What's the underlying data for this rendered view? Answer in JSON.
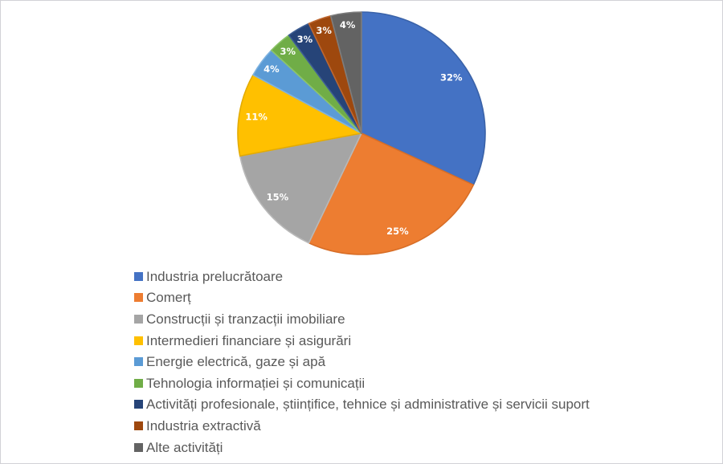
{
  "canvas": {
    "background": "#ffffff",
    "border_color": "#d2d2d6"
  },
  "chart_data": {
    "type": "pie",
    "title": "",
    "direction": "clockwise",
    "start_angle_deg": 0,
    "legend_position": "bottom-left",
    "data_label_color": "#ffffff",
    "legend_text_color": "#595959",
    "slices": [
      {
        "label": "Industria prelucrătoare",
        "value": 32,
        "percent_label": "32%",
        "color": "#4472C4",
        "border": "#3A62A8"
      },
      {
        "label": "Comerț",
        "value": 25,
        "percent_label": "25%",
        "color": "#ED7D31",
        "border": "#D86E27"
      },
      {
        "label": "Construcții și tranzacții imobiliare",
        "value": 15,
        "percent_label": "15%",
        "color": "#A5A5A5",
        "border": "#B9B9B9"
      },
      {
        "label": "Intermedieri financiare și asigurări",
        "value": 11,
        "percent_label": "11%",
        "color": "#FFC000",
        "border": "#E3AB00"
      },
      {
        "label": "Energie electrică, gaze și apă",
        "value": 4,
        "percent_label": "4%",
        "color": "#5B9BD5",
        "border": "#7FB3E0"
      },
      {
        "label": "Tehnologia informației și comunicații",
        "value": 3,
        "percent_label": "3%",
        "color": "#70AD47",
        "border": "#8CC468"
      },
      {
        "label": "Activități profesionale, științifice, tehnice și administrative și servicii suport",
        "value": 3,
        "percent_label": "3%",
        "color": "#264478",
        "border": "#3E5E94"
      },
      {
        "label": "Industria extractivă",
        "value": 3,
        "percent_label": "3%",
        "color": "#9E480E",
        "border": "#BE6730"
      },
      {
        "label": "Alte activități",
        "value": 4,
        "percent_label": "4%",
        "color": "#636363",
        "border": "#7D7D7D"
      }
    ]
  }
}
